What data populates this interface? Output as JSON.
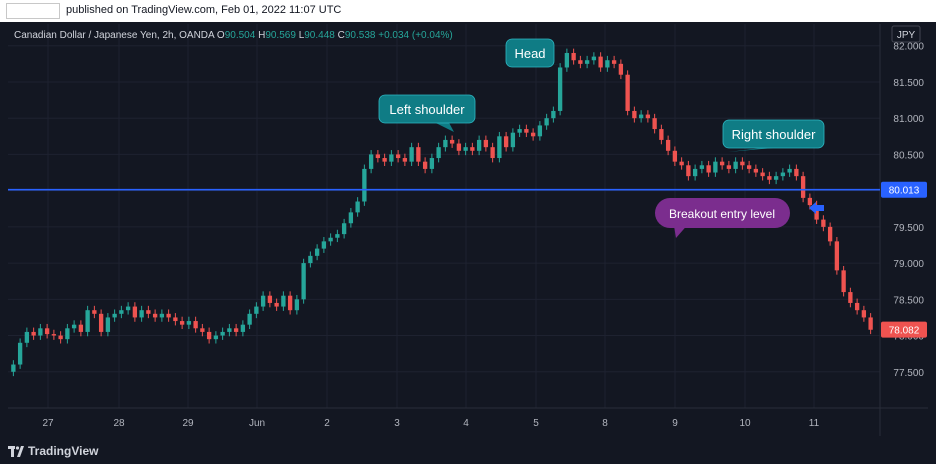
{
  "header": {
    "published_text": "published on TradingView.com, Feb 01, 2022 11:07 UTC"
  },
  "legend": {
    "symbol": "Canadian Dollar / Japanese Yen, 2h, OANDA",
    "o_label": "O",
    "o_value": "90.504",
    "h_label": "H",
    "h_value": "90.569",
    "l_label": "L",
    "l_value": "90.448",
    "c_label": "C",
    "c_value": "90.538",
    "change": "+0.034 (+0.04%)"
  },
  "currency_button": "JPY",
  "annotations": {
    "head": "Head",
    "left_shoulder": "Left shoulder",
    "right_shoulder": "Right shoulder",
    "breakout": "Breakout entry level"
  },
  "footer": {
    "brand": "TradingView"
  },
  "colors": {
    "up": "#26a69a",
    "down": "#ef5350",
    "neckline": "#2962ff",
    "callout_teal": "#0f7c85",
    "callout_purple": "#7b2d8e",
    "background": "#131722"
  },
  "chart_data": {
    "type": "candlestick",
    "ylim": [
      77.0,
      82.3
    ],
    "y_ticks": [
      "82.000",
      "81.500",
      "81.000",
      "80.500",
      "80.000",
      "79.500",
      "79.000",
      "78.500",
      "78.000",
      "77.500"
    ],
    "x_ticks": [
      "27",
      "28",
      "29",
      "Jun",
      "2",
      "3",
      "4",
      "5",
      "8",
      "9",
      "10",
      "11"
    ],
    "neckline": {
      "value": 80.013,
      "label": "80.013"
    },
    "last_price": {
      "value": 78.082,
      "label": "78.082"
    },
    "closes": [
      77.6,
      77.9,
      78.05,
      78.0,
      78.1,
      78.02,
      78.0,
      77.95,
      78.1,
      78.15,
      78.05,
      78.35,
      78.3,
      78.05,
      78.25,
      78.3,
      78.35,
      78.4,
      78.25,
      78.35,
      78.3,
      78.25,
      78.3,
      78.25,
      78.2,
      78.15,
      78.2,
      78.1,
      78.05,
      77.95,
      78.0,
      78.05,
      78.1,
      78.05,
      78.15,
      78.3,
      78.4,
      78.55,
      78.45,
      78.4,
      78.55,
      78.35,
      78.5,
      79.0,
      79.1,
      79.2,
      79.3,
      79.35,
      79.4,
      79.55,
      79.7,
      79.85,
      80.3,
      80.5,
      80.45,
      80.4,
      80.5,
      80.45,
      80.4,
      80.6,
      80.4,
      80.3,
      80.45,
      80.6,
      80.7,
      80.65,
      80.55,
      80.6,
      80.55,
      80.7,
      80.6,
      80.45,
      80.75,
      80.6,
      80.8,
      80.85,
      80.8,
      80.75,
      80.9,
      81.0,
      81.1,
      81.7,
      81.9,
      81.8,
      81.75,
      81.8,
      81.85,
      81.7,
      81.8,
      81.75,
      81.6,
      81.1,
      81.0,
      81.05,
      81.0,
      80.85,
      80.7,
      80.55,
      80.4,
      80.35,
      80.2,
      80.3,
      80.35,
      80.25,
      80.4,
      80.35,
      80.3,
      80.4,
      80.35,
      80.3,
      80.25,
      80.2,
      80.15,
      80.2,
      80.25,
      80.3,
      80.2,
      79.9,
      79.8,
      79.6,
      79.5,
      79.3,
      78.9,
      78.6,
      78.45,
      78.35,
      78.25,
      78.08
    ]
  }
}
